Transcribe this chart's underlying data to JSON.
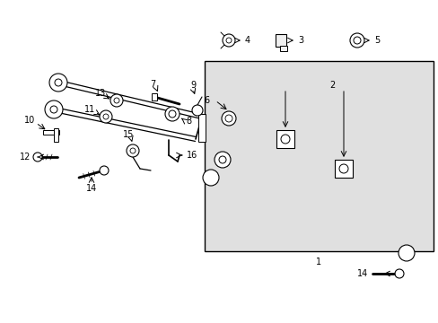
{
  "bg_color": "#ffffff",
  "inset_bg": "#e0e0e0",
  "line_color": "#000000",
  "fig_width": 4.89,
  "fig_height": 3.6,
  "dpi": 100
}
